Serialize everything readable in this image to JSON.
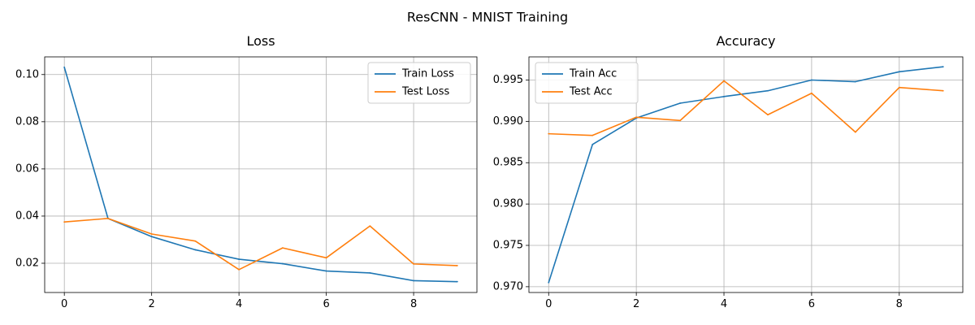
{
  "figure": {
    "suptitle": "ResCNN - MNIST Training"
  },
  "colors": {
    "train": "#1f77b4",
    "test": "#ff7f0e",
    "grid": "#b0b0b0",
    "axis": "#000000"
  },
  "chart_data": [
    {
      "type": "line",
      "title": "Loss",
      "xlabel": "",
      "ylabel": "",
      "x": [
        0,
        1,
        2,
        3,
        4,
        5,
        6,
        7,
        8,
        9
      ],
      "xlim": [
        -0.45,
        9.45
      ],
      "ylim": [
        0.0076,
        0.1075
      ],
      "xticks": [
        0,
        2,
        4,
        6,
        8
      ],
      "xtick_labels": [
        "0",
        "2",
        "4",
        "6",
        "8"
      ],
      "yticks": [
        0.02,
        0.04,
        0.06,
        0.08,
        0.1
      ],
      "ytick_labels": [
        "0.02",
        "0.04",
        "0.06",
        "0.08",
        "0.10"
      ],
      "grid": true,
      "legend_position": "top-right",
      "series": [
        {
          "name": "Train Loss",
          "color": "#1f77b4",
          "values": [
            0.1031,
            0.039,
            0.0313,
            0.0257,
            0.0217,
            0.0198,
            0.0167,
            0.0159,
            0.0126,
            0.0122
          ]
        },
        {
          "name": "Test Loss",
          "color": "#ff7f0e",
          "values": [
            0.0375,
            0.039,
            0.0324,
            0.0294,
            0.0173,
            0.0265,
            0.0223,
            0.0358,
            0.0197,
            0.019
          ]
        }
      ]
    },
    {
      "type": "line",
      "title": "Accuracy",
      "xlabel": "",
      "ylabel": "",
      "x": [
        0,
        1,
        2,
        3,
        4,
        5,
        6,
        7,
        8,
        9
      ],
      "xlim": [
        -0.45,
        9.45
      ],
      "ylim": [
        0.9693,
        0.9978
      ],
      "xticks": [
        0,
        2,
        4,
        6,
        8
      ],
      "xtick_labels": [
        "0",
        "2",
        "4",
        "6",
        "8"
      ],
      "yticks": [
        0.97,
        0.975,
        0.98,
        0.985,
        0.99,
        0.995
      ],
      "ytick_labels": [
        "0.970",
        "0.975",
        "0.980",
        "0.985",
        "0.990",
        "0.995"
      ],
      "grid": true,
      "legend_position": "top-left",
      "series": [
        {
          "name": "Train Acc",
          "color": "#1f77b4",
          "values": [
            0.9705,
            0.9872,
            0.9904,
            0.9922,
            0.993,
            0.9937,
            0.995,
            0.9948,
            0.996,
            0.9966
          ]
        },
        {
          "name": "Test Acc",
          "color": "#ff7f0e",
          "values": [
            0.9885,
            0.9883,
            0.9905,
            0.9901,
            0.9949,
            0.9908,
            0.9934,
            0.9887,
            0.9941,
            0.9937
          ]
        }
      ]
    }
  ]
}
